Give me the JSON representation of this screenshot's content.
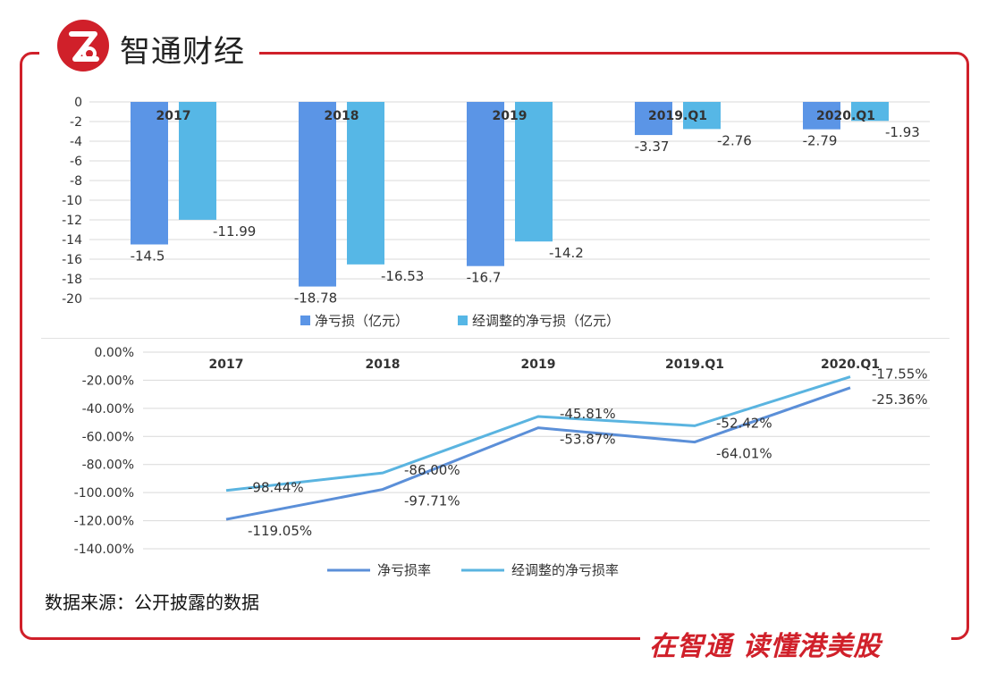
{
  "header": {
    "brand": "智通财经",
    "logo_icon": "zhitong-logo-icon",
    "accent": "#d0202a"
  },
  "footer": {
    "slogan": "在智通  读懂港美股"
  },
  "source_note": "数据来源：公开披露的数据",
  "colors": {
    "primary_series": "#5b8fd8",
    "secondary_series": "#5ab4e0",
    "bar_primary": "#5b95e6",
    "bar_secondary": "#56b7e6",
    "grid": "#d9d9d9",
    "text": "#333333"
  },
  "chart_data": [
    {
      "type": "bar",
      "title": "",
      "categories": [
        "2017",
        "2018",
        "2019",
        "2019.Q1",
        "2020.Q1"
      ],
      "yticks": [
        "0",
        "-2",
        "-4",
        "-6",
        "-8",
        "-10",
        "-12",
        "-14",
        "-16",
        "-18",
        "-20"
      ],
      "ylim": [
        -20,
        0
      ],
      "series": [
        {
          "name": "净亏损（亿元）",
          "values": [
            -14.5,
            -18.78,
            -16.7,
            -3.37,
            -2.79
          ],
          "labels": [
            "-14.5",
            "-18.78",
            "-16.7",
            "-3.37",
            "-2.79"
          ]
        },
        {
          "name": "经调整的净亏损（亿元）",
          "values": [
            -11.99,
            -16.53,
            -14.2,
            -2.76,
            -1.93
          ],
          "labels": [
            "-11.99",
            "-16.53",
            "-14.2",
            "-2.76",
            "-1.93"
          ]
        }
      ],
      "legend": "bottom",
      "grid": true
    },
    {
      "type": "line",
      "title": "",
      "categories": [
        "2017",
        "2018",
        "2019",
        "2019.Q1",
        "2020.Q1"
      ],
      "yticks": [
        "0.00%",
        "-20.00%",
        "-40.00%",
        "-60.00%",
        "-80.00%",
        "-100.00%",
        "-120.00%",
        "-140.00%"
      ],
      "ylim": [
        -140,
        0
      ],
      "series": [
        {
          "name": "净亏损率",
          "values": [
            -119.05,
            -97.71,
            -53.87,
            -64.01,
            -25.36
          ],
          "labels": [
            "-119.05%",
            "-97.71%",
            "-53.87%",
            "-64.01%",
            "-25.36%"
          ]
        },
        {
          "name": "经调整的净亏损率",
          "values": [
            -98.44,
            -86.0,
            -45.81,
            -52.42,
            -17.55
          ],
          "labels": [
            "-98.44%",
            "-86.00%",
            "-45.81%",
            "-52.42%",
            "-17.55%"
          ]
        }
      ],
      "legend": "bottom",
      "grid": true
    }
  ]
}
